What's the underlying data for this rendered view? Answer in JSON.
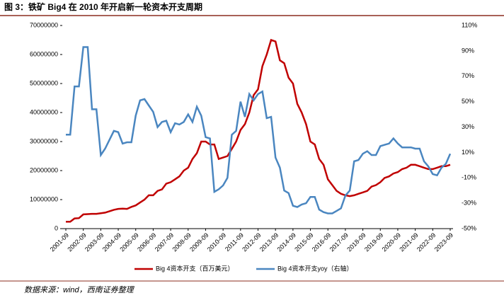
{
  "chart_data": {
    "type": "line",
    "title": "图 3：铁矿 Big4 在 2010 年开启新一轮资本开支周期",
    "source": "数据来源：wind，西南证券整理",
    "categories": [
      "2001-09",
      null,
      null,
      null,
      "2002-09",
      null,
      null,
      null,
      "2003-09",
      null,
      null,
      null,
      "2004-09",
      null,
      null,
      null,
      "2005-09",
      null,
      null,
      null,
      "2006-09",
      null,
      null,
      null,
      "2007-09",
      null,
      null,
      null,
      "2008-09",
      null,
      null,
      null,
      "2009-09",
      null,
      null,
      null,
      "2010-09",
      null,
      null,
      null,
      "2011-09",
      null,
      null,
      null,
      "2012-09",
      null,
      null,
      null,
      "2013-09",
      null,
      null,
      null,
      "2014-09",
      null,
      null,
      null,
      "2015-09",
      null,
      null,
      null,
      "2016-09",
      null,
      null,
      null,
      "2017-09",
      null,
      null,
      null,
      "2018-09",
      null,
      null,
      null,
      "2019-09",
      null,
      null,
      null,
      "2020-09",
      null,
      null,
      null,
      "2021-09",
      null,
      null,
      null,
      "2022-09",
      null,
      null,
      null,
      "2023-09"
    ],
    "series": [
      {
        "name": "Big 4资本开支（百万美元）",
        "color": "#c00000",
        "axis": "y",
        "values": [
          2400000,
          2400000,
          3500000,
          3600000,
          4900000,
          5000000,
          5100000,
          5100000,
          5300000,
          5500000,
          6000000,
          6500000,
          6800000,
          6900000,
          6800000,
          7500000,
          8000000,
          9000000,
          10000000,
          11500000,
          11500000,
          13000000,
          13500000,
          15500000,
          16000000,
          17000000,
          18000000,
          20000000,
          21000000,
          24000000,
          26000000,
          30000000,
          30000000,
          29000000,
          29000000,
          24000000,
          24500000,
          25000000,
          27500000,
          30000000,
          34000000,
          36000000,
          40000000,
          46000000,
          48000000,
          56000000,
          60000000,
          65000000,
          64500000,
          58000000,
          57000000,
          52000000,
          50000000,
          43000000,
          40000000,
          36000000,
          30000000,
          29000000,
          24000000,
          22000000,
          17000000,
          15000000,
          13000000,
          12000000,
          11500000,
          11200000,
          11500000,
          12000000,
          12500000,
          13000000,
          14500000,
          15000000,
          16000000,
          17500000,
          18000000,
          19000000,
          19500000,
          20500000,
          21000000,
          22000000,
          22000000,
          21500000,
          21000000,
          20500000,
          20500000,
          21000000,
          21500000,
          21500000,
          22000000
        ]
      },
      {
        "name": "Big 4资本开支yoy（右轴）",
        "color": "#4a86c0",
        "axis": "y2",
        "values": [
          24,
          24,
          62,
          62,
          93,
          93,
          44,
          44,
          8,
          13,
          20,
          27,
          26,
          17,
          18,
          18,
          39,
          51,
          52,
          47,
          42,
          30,
          34,
          35,
          26,
          33,
          32,
          34,
          40,
          34,
          46,
          39,
          22,
          21,
          -21,
          -19,
          -16,
          -10,
          24,
          27,
          50,
          38,
          56,
          51,
          56,
          58,
          37,
          38,
          6,
          -2,
          -20,
          -22,
          -32,
          -33,
          -31,
          -30,
          -25,
          -25,
          -35,
          -37,
          -38,
          -38,
          -36,
          -34,
          -24,
          -20,
          3,
          4,
          9,
          11,
          8,
          8,
          15,
          16,
          17,
          21,
          17,
          14,
          14,
          14,
          13,
          13,
          3,
          -1,
          -7,
          -8,
          -2,
          1,
          9
        ]
      }
    ],
    "ylim": [
      0,
      70000000
    ],
    "yticks": [
      0,
      10000000,
      20000000,
      30000000,
      40000000,
      50000000,
      60000000,
      70000000
    ],
    "y2lim": [
      -50,
      110
    ],
    "y2ticks": [
      {
        "value": -50,
        "label": "-50%"
      },
      {
        "value": -30,
        "label": "-30%"
      },
      {
        "value": -10,
        "label": "-10%"
      },
      {
        "value": 10,
        "label": "10%"
      },
      {
        "value": 30,
        "label": "30%"
      },
      {
        "value": 50,
        "label": "50%"
      },
      {
        "value": 70,
        "label": "70%"
      },
      {
        "value": 90,
        "label": "90%"
      },
      {
        "value": 110,
        "label": "110%"
      }
    ],
    "grid": false,
    "legend": "bottom"
  }
}
